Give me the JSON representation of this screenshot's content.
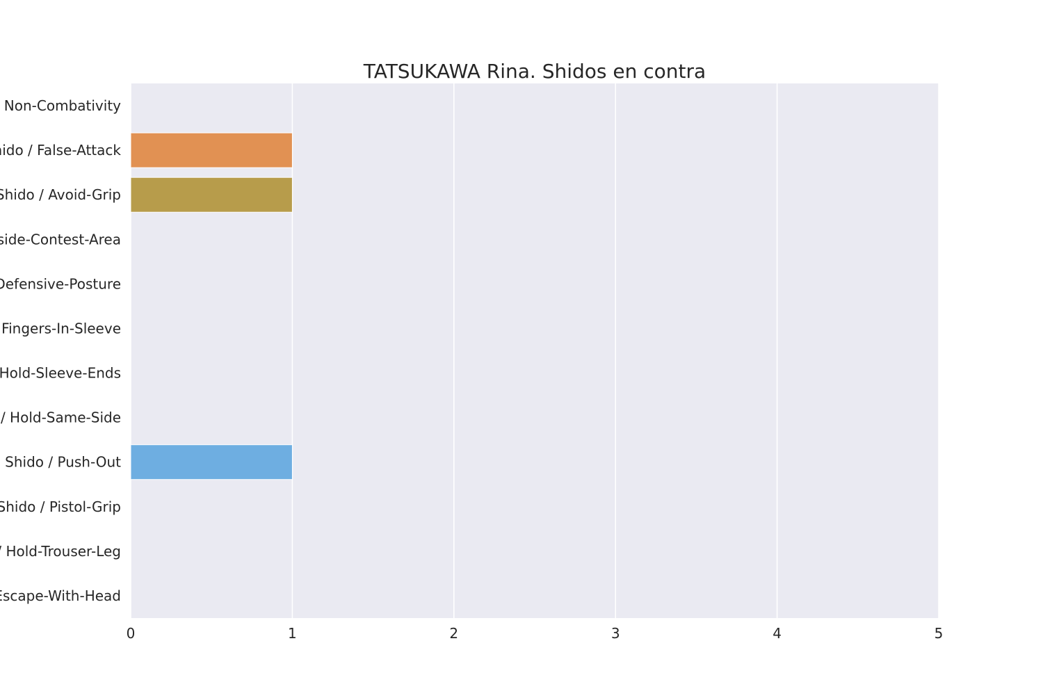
{
  "chart_data": {
    "type": "bar",
    "orientation": "horizontal",
    "title": "TATSUKAWA Rina. Shidos en contra",
    "xlabel": "",
    "ylabel": "",
    "xlim": [
      0,
      5
    ],
    "x_ticks": [
      "0",
      "1",
      "2",
      "3",
      "4",
      "5"
    ],
    "grid": true,
    "legend": "none",
    "categories": [
      "Shido / Non-Combativity",
      "Shido / False-Attack",
      "Shido / Avoid-Grip",
      "Shido / Outside-Contest-Area",
      "Shido / Defensive-Posture",
      "Shido / Fingers-In-Sleeve",
      "Shido / Hold-Sleeve-Ends",
      "Shido / Hold-Same-Side",
      "Shido / Push-Out",
      "Shido / Pistol-Grip",
      "Shido / Hold-Trouser-Leg",
      "Shido / Escape-With-Head"
    ],
    "values": [
      0,
      1,
      1,
      0,
      0,
      0,
      0,
      0,
      1,
      0,
      0,
      0
    ],
    "colors": [
      "#f77189",
      "#e19153",
      "#b79c4b",
      "#97a431",
      "#50b131",
      "#34ae91",
      "#37abb5",
      "#3ba3ec",
      "#6eaee1",
      "#bb83f4",
      "#f564d4",
      "#f668b3"
    ]
  },
  "style": {
    "plot_background": "#eaeaf2",
    "grid_color": "#ffffff",
    "text_color": "#262626"
  }
}
